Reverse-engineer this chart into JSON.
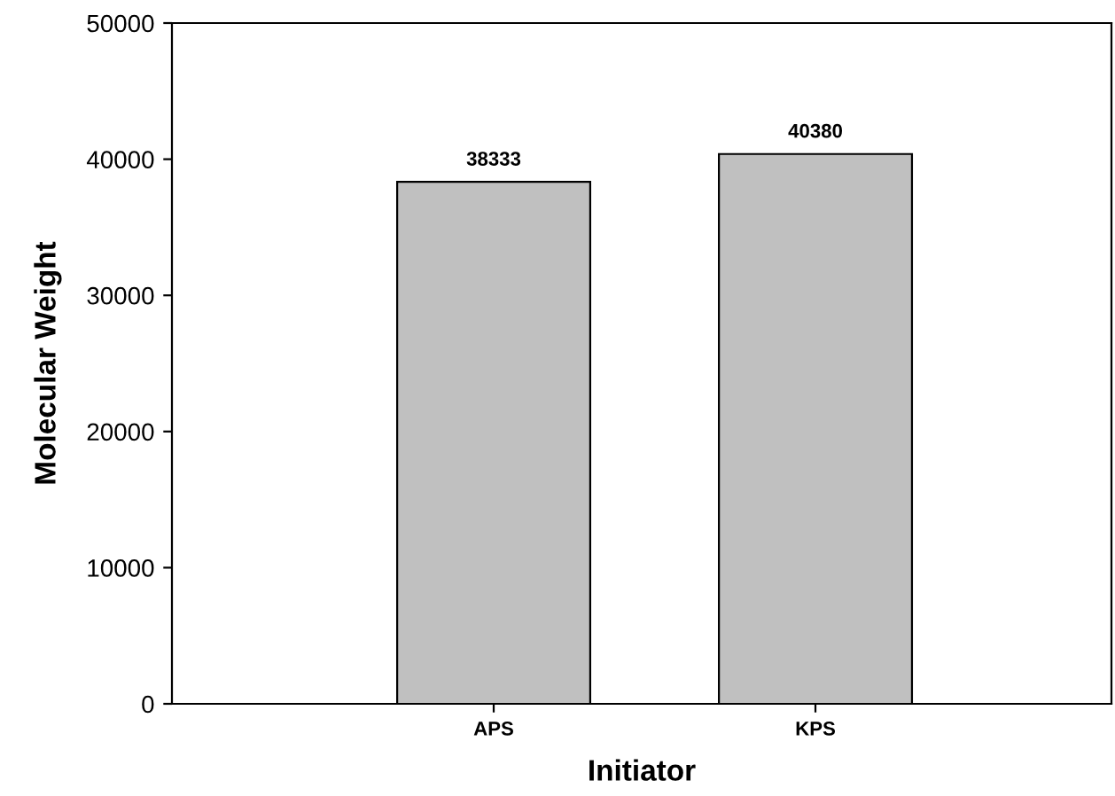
{
  "chart_data": {
    "type": "bar",
    "xlabel": "Initiator",
    "ylabel": "Molecular Weight",
    "categories": [
      "APS",
      "KPS"
    ],
    "values": [
      38333,
      40380
    ],
    "color": "#c0c0c0",
    "ylim": [
      0,
      50000
    ],
    "yticks": [
      0,
      10000,
      20000,
      30000,
      40000,
      50000
    ],
    "data_labels": true,
    "grid": false,
    "legend": false
  }
}
